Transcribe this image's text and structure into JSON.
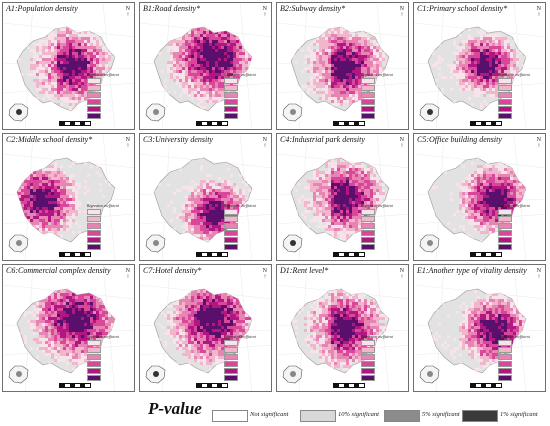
{
  "panels": [
    {
      "title": "A1:Population density",
      "scheme": "default"
    },
    {
      "title": "B1:Road density*",
      "scheme": "scatter"
    },
    {
      "title": "B2:Subway density*",
      "scheme": "default"
    },
    {
      "title": "C1:Primary school density*",
      "scheme": "core"
    },
    {
      "title": "C2:Middle school density*",
      "scheme": "west"
    },
    {
      "title": "C3:University density",
      "scheme": "south"
    },
    {
      "title": "C4:Industrial park density",
      "scheme": "default"
    },
    {
      "title": "C5:Office building density",
      "scheme": "east"
    },
    {
      "title": "C6:Commercial complex density",
      "scheme": "scatter"
    },
    {
      "title": "C7:Hotel density*",
      "scheme": "scatter"
    },
    {
      "title": "D1:Rent level*",
      "scheme": "default"
    },
    {
      "title": "E1:Another type of vitality density",
      "scheme": "east"
    }
  ],
  "legend_title": "Regression coefficient",
  "north_label": "N",
  "colors": {
    "base": "#e2e2e2",
    "ramp": [
      "#f6e4ea",
      "#f2b6cc",
      "#e884b3",
      "#d9479a",
      "#b01780",
      "#5b0f6d"
    ]
  },
  "pvalue": {
    "title": "P-value",
    "items": [
      {
        "label": "Not  significant",
        "color": "#ffffff"
      },
      {
        "label": "10% significant",
        "color": "#d8d8d8"
      },
      {
        "label": "5% significant",
        "color": "#8c8c8c"
      },
      {
        "label": "1% significant",
        "color": "#3a3a3a"
      }
    ]
  }
}
